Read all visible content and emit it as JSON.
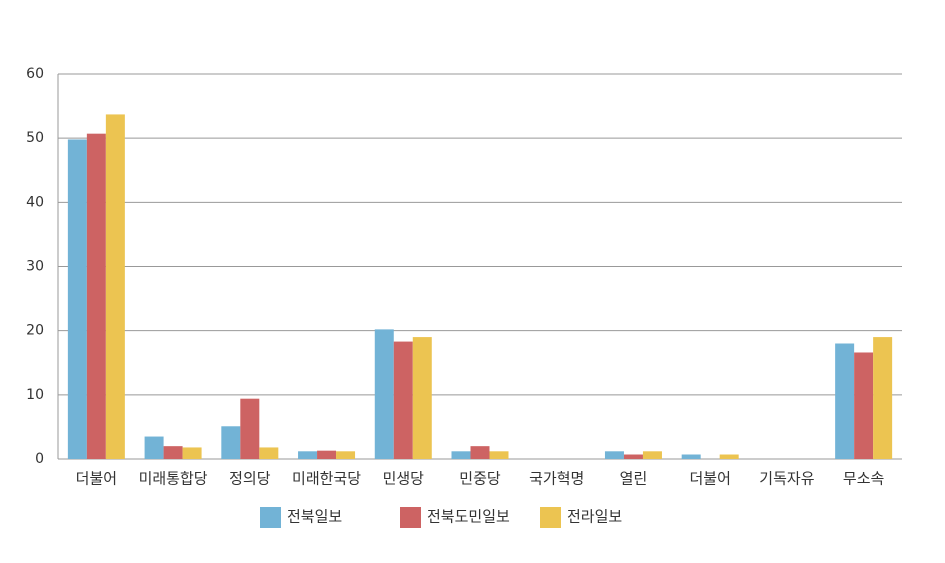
{
  "chart_data": {
    "type": "bar",
    "categories": [
      "더불어",
      "미래통합당",
      "정의당",
      "미래한국당",
      "민생당",
      "민중당",
      "국가혁명",
      "열린",
      "더불어",
      "기독자유",
      "무소속"
    ],
    "series": [
      {
        "name": "전북일보",
        "color": "#72b3d6",
        "values": [
          49.8,
          3.5,
          5.1,
          1.2,
          20.2,
          1.2,
          0,
          1.2,
          0.7,
          0,
          18.0
        ]
      },
      {
        "name": "전북도민일보",
        "color": "#cd6363",
        "values": [
          50.7,
          2.0,
          9.4,
          1.3,
          18.3,
          2.0,
          0,
          0.7,
          0,
          0,
          16.6
        ]
      },
      {
        "name": "전라일보",
        "color": "#ecc451",
        "values": [
          53.7,
          1.8,
          1.8,
          1.2,
          19.0,
          1.2,
          0,
          1.2,
          0.7,
          0,
          19.0
        ]
      }
    ],
    "ylim": [
      0,
      60
    ],
    "yticks": [
      0,
      10,
      20,
      30,
      40,
      50,
      60
    ],
    "grid": true,
    "legend": "bottom"
  }
}
